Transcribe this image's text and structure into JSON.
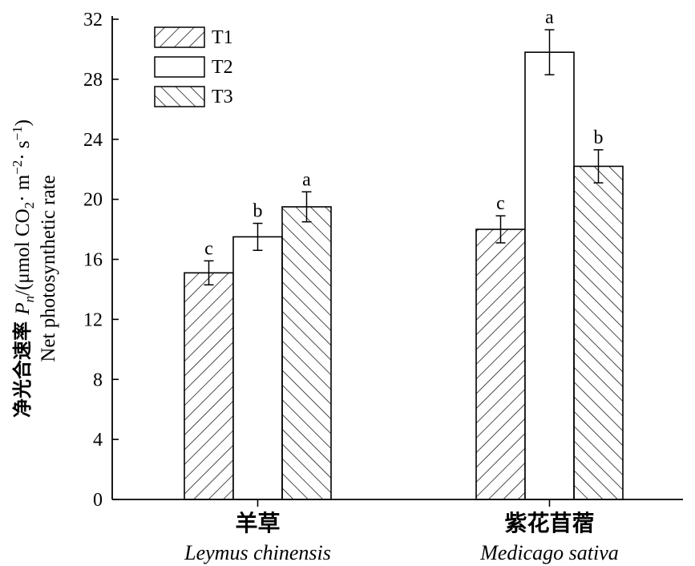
{
  "chart_data": {
    "type": "bar",
    "title": "",
    "ylabel_zh": "净光合速率",
    "ylabel_symbol": "P",
    "ylabel_sub": "n",
    "ylabel_unit_open": "/(μmol CO",
    "ylabel_unit_co2sub": "2",
    "ylabel_unit_mid": "· m",
    "ylabel_unit_msup": "−2",
    "ylabel_unit_s": "· s",
    "ylabel_unit_ssup": "−1",
    "ylabel_unit_close": ")",
    "ylabel_en": "Net photosynthetic rate",
    "ylim": [
      0,
      32
    ],
    "yticks": [
      "0",
      "4",
      "8",
      "12",
      "16",
      "20",
      "24",
      "28",
      "32"
    ],
    "categories": [
      {
        "zh": "羊草",
        "en": "Leymus chinensis"
      },
      {
        "zh": "紫花苜蓿",
        "en": "Medicago sativa"
      }
    ],
    "series": [
      {
        "name": "T1",
        "pattern": "diag-up",
        "values": [
          15.1,
          18.0
        ],
        "errors": [
          0.8,
          0.9
        ],
        "labels": [
          "c",
          "c"
        ]
      },
      {
        "name": "T2",
        "pattern": "none",
        "values": [
          17.5,
          29.8
        ],
        "errors": [
          0.9,
          1.5
        ],
        "labels": [
          "b",
          "a"
        ]
      },
      {
        "name": "T3",
        "pattern": "diag-down",
        "values": [
          19.5,
          22.2
        ],
        "errors": [
          1.0,
          1.1
        ],
        "labels": [
          "a",
          "b"
        ]
      }
    ],
    "legend_position": "top-left",
    "grid": false
  }
}
